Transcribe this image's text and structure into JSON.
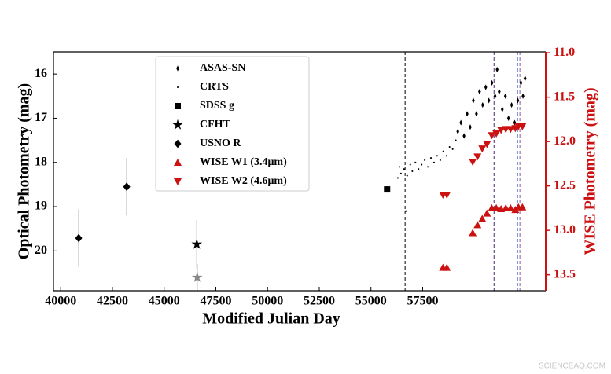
{
  "chart_data": {
    "type": "scatter",
    "xlabel": "Modified Julian Day",
    "ylabel": "Optical Photometry (mag)",
    "y2label": "WISE Photometry (mag)",
    "y2color": "#cc1111",
    "watermark": "SCIENCEAQ.COM",
    "xlim": [
      39650,
      63450
    ],
    "xticks": [
      40000,
      42500,
      45000,
      47500,
      50000,
      52500,
      55000,
      57500
    ],
    "ylim": [
      20.9,
      15.5
    ],
    "yticks": [
      16,
      17,
      18,
      19,
      20
    ],
    "y2lim": [
      13.68,
      10.99
    ],
    "y2ticks": [
      {
        "value": 11,
        "label": "11.0"
      },
      11.5,
      {
        "value": 12,
        "label": "12.0"
      },
      12.5,
      {
        "value": 13,
        "label": "13.0"
      },
      13.5
    ],
    "vlines": [
      {
        "value": 56650,
        "color": "#000000"
      },
      {
        "value": 60950,
        "color": "#4b2a6e"
      },
      {
        "value": 62090,
        "color": "#4a6fd8"
      },
      {
        "value": 62200,
        "color": "#8a5a9a"
      }
    ],
    "series": [
      {
        "name": "ASAS-SN",
        "color": "#000000",
        "marker": "thin-diamond",
        "x": [
          59200,
          59350,
          59500,
          59650,
          59800,
          59950,
          60100,
          60250,
          60400,
          60550,
          60700,
          60850,
          61000,
          61100,
          61200,
          61350,
          61500,
          61650,
          61800,
          61950,
          62100,
          62250,
          62350,
          62450
        ],
        "values": [
          17.3,
          17.1,
          17.4,
          16.9,
          17.2,
          16.6,
          16.9,
          16.4,
          16.7,
          16.3,
          16.6,
          16.2,
          16.5,
          15.9,
          16.4,
          16.8,
          16.5,
          17.0,
          16.7,
          17.1,
          16.6,
          16.2,
          16.5,
          16.1
        ]
      },
      {
        "name": "CRTS",
        "color": "#000000",
        "marker": "dot",
        "x": [
          56300,
          56380,
          56450,
          56600,
          56690,
          56750,
          56900,
          57000,
          57150,
          57300,
          57450,
          57600,
          57750,
          57900,
          58050,
          58200,
          58350,
          58500,
          58650,
          58800,
          58950,
          59100
        ],
        "values": [
          18.35,
          18.1,
          18.25,
          18.15,
          19.1,
          18.3,
          18.05,
          18.2,
          18.0,
          18.15,
          18.05,
          17.95,
          18.1,
          17.9,
          18.0,
          17.85,
          17.95,
          17.75,
          17.85,
          17.65,
          17.7,
          17.5
        ]
      },
      {
        "name": "SDSS g",
        "color": "#000000",
        "marker": "square",
        "x": [
          55780
        ],
        "values": [
          18.61
        ]
      },
      {
        "name": "CFHT",
        "color": "#000000",
        "marker": "star",
        "x": [
          46580,
          46600
        ],
        "values": [
          19.85,
          20.6
        ],
        "errors": [
          0.55,
          0.3
        ],
        "colors": [
          "#000000",
          "#888888"
        ]
      },
      {
        "name": "USNO R",
        "color": "#000000",
        "marker": "diamond",
        "x": [
          40870,
          43190
        ],
        "values": [
          19.71,
          18.55
        ],
        "errors": [
          0.65,
          0.65
        ]
      },
      {
        "name": "WISE W1 (3.4μm)",
        "color": "#cc1111",
        "marker": "triangle-up",
        "axis": "y2",
        "x": [
          58480,
          58670,
          59920,
          60150,
          60380,
          60610,
          60840,
          61060,
          61290,
          61520,
          61750,
          61980,
          62130,
          62320
        ],
        "values": [
          13.42,
          13.42,
          13.03,
          12.94,
          12.87,
          12.81,
          12.75,
          12.75,
          12.76,
          12.75,
          12.75,
          12.77,
          12.74,
          12.74
        ]
      },
      {
        "name": "WISE W2 (4.6μm)",
        "color": "#cc1111",
        "marker": "triangle-down",
        "axis": "y2",
        "x": [
          58480,
          58670,
          59920,
          60150,
          60380,
          60610,
          60840,
          61060,
          61290,
          61520,
          61750,
          61980,
          62130,
          62320
        ],
        "values": [
          12.6,
          12.6,
          12.23,
          12.17,
          12.08,
          12.03,
          11.93,
          11.91,
          11.87,
          11.86,
          11.86,
          11.85,
          11.83,
          11.83
        ]
      }
    ]
  }
}
